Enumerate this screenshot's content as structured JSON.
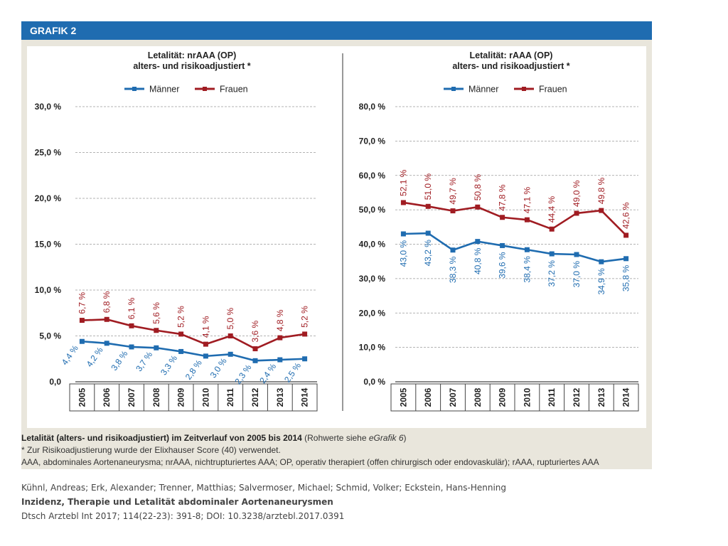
{
  "figure": {
    "label": "GRAFIK 2",
    "caption": {
      "title": "Letalität (alters- und risikoadjustiert) im Zeitverlauf von 2005 bis 2014",
      "raw_prefix": " (Rohwerte siehe ",
      "raw_link": "eGrafik 6",
      "raw_suffix": ")",
      "note": "* Zur Risikoadjustierung wurde der Elixhauser Score (40) verwendet.",
      "abbreviations": "AAA, abdominales Aortenaneurysma; nrAAA, nichtrupturiertes AAA; OP, operativ therapiert (offen chirurgisch oder endovaskulär); rAAA, rupturiertes AAA"
    }
  },
  "credits": {
    "authors": "Kühnl, Andreas; Erk, Alexander; Trenner, Matthias; Salvermoser, Michael; Schmid, Volker; Eckstein, Hans-Henning",
    "title": "Inzidenz, Therapie und Letalität abdominaler Aortenaneurysmen",
    "citation": "Dtsch Arztebl Int 2017; 114(22-23): 391-8; DOI: 10.3238/arztebl.2017.0391"
  },
  "colors": {
    "maenner": "#1f6cb0",
    "frauen": "#a01c22",
    "header": "#1f6cb0"
  },
  "chart_data": [
    {
      "type": "line",
      "title": "Letalität: nrAAA (OP)",
      "subtitle": "alters- und risikoadjustiert *",
      "categories": [
        "2005",
        "2006",
        "2007",
        "2008",
        "2009",
        "2010",
        "2011",
        "2012",
        "2013",
        "2014"
      ],
      "ylim": [
        0,
        30
      ],
      "yticks": [
        0,
        5,
        10,
        15,
        20,
        25,
        30
      ],
      "ytick_labels": [
        "0,0",
        "5,0 %",
        "10,0 %",
        "15,0 %",
        "20,0 %",
        "25,0 %",
        "30,0 %"
      ],
      "series": [
        {
          "name": "Männer",
          "values": [
            4.4,
            4.2,
            3.8,
            3.7,
            3.3,
            2.8,
            3.0,
            2.3,
            2.4,
            2.5
          ],
          "labels": [
            "4,4 %",
            "4,2 %",
            "3,8 %",
            "3,7 %",
            "3,3 %",
            "2,8 %",
            "3,0 %",
            "2,3 %",
            "2,4 %",
            "2,5 %"
          ]
        },
        {
          "name": "Frauen",
          "values": [
            6.7,
            6.8,
            6.1,
            5.6,
            5.2,
            4.1,
            5.0,
            3.6,
            4.8,
            5.2
          ],
          "labels": [
            "6,7 %",
            "6,8 %",
            "6,1 %",
            "5,6 %",
            "5,2 %",
            "4,1 %",
            "5,0 %",
            "3,6 %",
            "4,8 %",
            "5,2 %"
          ]
        }
      ]
    },
    {
      "type": "line",
      "title": "Letalität: rAAA (OP)",
      "subtitle": "alters- und risikoadjustiert *",
      "categories": [
        "2005",
        "2006",
        "2007",
        "2008",
        "2009",
        "2010",
        "2011",
        "2012",
        "2013",
        "2014"
      ],
      "ylim": [
        0,
        80
      ],
      "yticks": [
        0,
        10,
        20,
        30,
        40,
        50,
        60,
        70,
        80
      ],
      "ytick_labels": [
        "0,0 %",
        "10,0 %",
        "20,0 %",
        "30,0 %",
        "40,0 %",
        "50,0 %",
        "60,0 %",
        "70,0 %",
        "80,0 %"
      ],
      "series": [
        {
          "name": "Männer",
          "values": [
            43.0,
            43.2,
            38.3,
            40.8,
            39.6,
            38.4,
            37.2,
            37.0,
            34.9,
            35.8
          ],
          "labels": [
            "43,0 %",
            "43,2 %",
            "38,3 %",
            "40,8 %",
            "39,6 %",
            "38,4 %",
            "37,2 %",
            "37,0 %",
            "34,9 %",
            "35,8 %"
          ]
        },
        {
          "name": "Frauen",
          "values": [
            52.1,
            51.0,
            49.7,
            50.8,
            47.8,
            47.1,
            44.4,
            49.0,
            49.8,
            42.6
          ],
          "labels": [
            "52,1 %",
            "51,0 %",
            "49,7 %",
            "50,8 %",
            "47,8 %",
            "47,1 %",
            "44,4 %",
            "49,0 %",
            "49,8 %",
            "42,6 %"
          ]
        }
      ]
    }
  ]
}
